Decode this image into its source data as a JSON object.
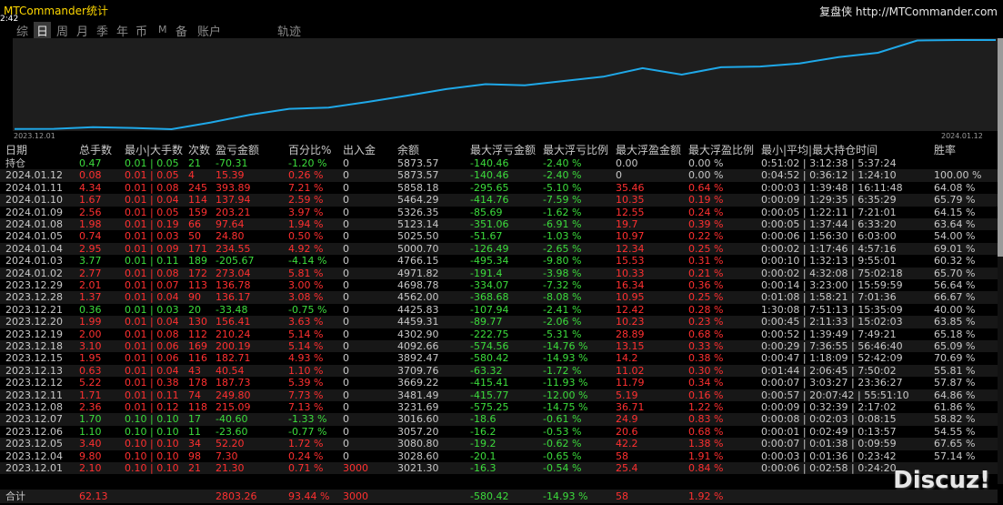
{
  "app": {
    "title": "MTCommander统计",
    "time_badge": "2:42",
    "brand": "复盘侠 http://MTCommander.com"
  },
  "tabs": [
    {
      "label": "综"
    },
    {
      "label": "日",
      "active": true
    },
    {
      "label": "周"
    },
    {
      "label": "月"
    },
    {
      "label": "季"
    },
    {
      "label": "年"
    },
    {
      "label": "币"
    },
    {
      "label": "M"
    },
    {
      "label": "备"
    },
    {
      "label": "账户"
    },
    {
      "label": "轨迹"
    }
  ],
  "equity_chart": {
    "x_start_label": "2023.12.01",
    "x_end_label": "2024.01.12",
    "line_color": "#1fa8e8",
    "values": [
      3021.3,
      3028.6,
      3080.8,
      3057.2,
      3016.6,
      3231.69,
      3481.49,
      3669.22,
      3709.76,
      3892.47,
      4092.66,
      4302.9,
      4459.31,
      4425.83,
      4562.0,
      4698.78,
      4971.82,
      4766.15,
      5000.7,
      5025.5,
      5123.14,
      5326.35,
      5464.29,
      5858.18,
      5873.57,
      5873.57
    ]
  },
  "colors": {
    "profit": "#ff3030",
    "loss": "#3cdc3c",
    "neutral": "#c8c8c8"
  },
  "table": {
    "headers": [
      "日期",
      "总手数",
      "最小|大手数",
      "次数",
      "盈亏金额",
      "百分比%",
      "出入金",
      "余额",
      "最大浮亏金额",
      "最大浮亏比例",
      "最大浮盈金额",
      "最大浮盈比例",
      "最小|平均|最大持仓时间",
      "胜率"
    ],
    "rows": [
      {
        "date": "持仓",
        "lots": "0.47",
        "minmax": "0.01 | 0.05",
        "count": "21",
        "pnl": "-70.31",
        "pct": "-1.20 %",
        "io": "0",
        "balance": "5873.57",
        "maxdd": "-140.46",
        "maxddpct": "-2.40 %",
        "maxfp": "0.00",
        "maxfppct": "0.00 %",
        "hold": "0:51:02 | 3:12:38 | 5:37:24",
        "win": "",
        "tone": "green"
      },
      {
        "date": "2024.01.12",
        "lots": "0.08",
        "minmax": "0.01 | 0.05",
        "count": "4",
        "pnl": "15.39",
        "pct": "0.26 %",
        "io": "0",
        "balance": "5873.57",
        "maxdd": "-140.46",
        "maxddpct": "-2.40 %",
        "maxfp": "0",
        "maxfppct": "0.00 %",
        "hold": "0:04:52 | 0:36:12 | 1:24:10",
        "win": "100.00 %",
        "tone": "red"
      },
      {
        "date": "2024.01.11",
        "lots": "4.34",
        "minmax": "0.01 | 0.08",
        "count": "245",
        "pnl": "393.89",
        "pct": "7.21 %",
        "io": "0",
        "balance": "5858.18",
        "maxdd": "-295.65",
        "maxddpct": "-5.10 %",
        "maxfp": "35.46",
        "maxfppct": "0.64 %",
        "hold": "0:00:03 | 1:39:48 | 16:11:48",
        "win": "64.08 %",
        "tone": "red"
      },
      {
        "date": "2024.01.10",
        "lots": "1.67",
        "minmax": "0.01 | 0.04",
        "count": "114",
        "pnl": "137.94",
        "pct": "2.59 %",
        "io": "0",
        "balance": "5464.29",
        "maxdd": "-414.76",
        "maxddpct": "-7.59 %",
        "maxfp": "10.35",
        "maxfppct": "0.19 %",
        "hold": "0:00:09 | 1:29:35 | 6:35:29",
        "win": "65.79 %",
        "tone": "red"
      },
      {
        "date": "2024.01.09",
        "lots": "2.56",
        "minmax": "0.01 | 0.05",
        "count": "159",
        "pnl": "203.21",
        "pct": "3.97 %",
        "io": "0",
        "balance": "5326.35",
        "maxdd": "-85.69",
        "maxddpct": "-1.62 %",
        "maxfp": "12.55",
        "maxfppct": "0.24 %",
        "hold": "0:00:05 | 1:22:11 | 7:21:01",
        "win": "64.15 %",
        "tone": "red"
      },
      {
        "date": "2024.01.08",
        "lots": "1.98",
        "minmax": "0.01 | 0.19",
        "count": "66",
        "pnl": "97.64",
        "pct": "1.94 %",
        "io": "0",
        "balance": "5123.14",
        "maxdd": "-351.06",
        "maxddpct": "-6.91 %",
        "maxfp": "19.7",
        "maxfppct": "0.39 %",
        "hold": "0:00:05 | 1:37:44 | 6:33:20",
        "win": "63.64 %",
        "tone": "red"
      },
      {
        "date": "2024.01.05",
        "lots": "0.74",
        "minmax": "0.01 | 0.03",
        "count": "50",
        "pnl": "24.80",
        "pct": "0.50 %",
        "io": "0",
        "balance": "5025.50",
        "maxdd": "-51.67",
        "maxddpct": "-1.03 %",
        "maxfp": "10.97",
        "maxfppct": "0.22 %",
        "hold": "0:00:06 | 1:56:30 | 6:03:00",
        "win": "54.00 %",
        "tone": "red"
      },
      {
        "date": "2024.01.04",
        "lots": "2.95",
        "minmax": "0.01 | 0.09",
        "count": "171",
        "pnl": "234.55",
        "pct": "4.92 %",
        "io": "0",
        "balance": "5000.70",
        "maxdd": "-126.49",
        "maxddpct": "-2.65 %",
        "maxfp": "12.34",
        "maxfppct": "0.25 %",
        "hold": "0:00:02 | 1:17:46 | 4:57:16",
        "win": "69.01 %",
        "tone": "red"
      },
      {
        "date": "2024.01.03",
        "lots": "3.77",
        "minmax": "0.01 | 0.11",
        "count": "189",
        "pnl": "-205.67",
        "pct": "-4.14 %",
        "io": "0",
        "balance": "4766.15",
        "maxdd": "-495.34",
        "maxddpct": "-9.80 %",
        "maxfp": "15.53",
        "maxfppct": "0.31 %",
        "hold": "0:00:10 | 1:32:13 | 9:55:01",
        "win": "60.32 %",
        "tone": "green"
      },
      {
        "date": "2024.01.02",
        "lots": "2.77",
        "minmax": "0.01 | 0.08",
        "count": "172",
        "pnl": "273.04",
        "pct": "5.81 %",
        "io": "0",
        "balance": "4971.82",
        "maxdd": "-191.4",
        "maxddpct": "-3.98 %",
        "maxfp": "10.33",
        "maxfppct": "0.21 %",
        "hold": "0:00:02 | 4:32:08 | 75:02:18",
        "win": "65.70 %",
        "tone": "red"
      },
      {
        "date": "2023.12.29",
        "lots": "2.01",
        "minmax": "0.01 | 0.07",
        "count": "113",
        "pnl": "136.78",
        "pct": "3.00 %",
        "io": "0",
        "balance": "4698.78",
        "maxdd": "-334.07",
        "maxddpct": "-7.32 %",
        "maxfp": "16.34",
        "maxfppct": "0.36 %",
        "hold": "0:00:14 | 3:23:00 | 15:59:59",
        "win": "56.64 %",
        "tone": "red"
      },
      {
        "date": "2023.12.28",
        "lots": "1.37",
        "minmax": "0.01 | 0.04",
        "count": "90",
        "pnl": "136.17",
        "pct": "3.08 %",
        "io": "0",
        "balance": "4562.00",
        "maxdd": "-368.68",
        "maxddpct": "-8.08 %",
        "maxfp": "10.95",
        "maxfppct": "0.25 %",
        "hold": "0:01:08 | 1:58:21 | 7:01:36",
        "win": "66.67 %",
        "tone": "red"
      },
      {
        "date": "2023.12.21",
        "lots": "0.36",
        "minmax": "0.01 | 0.03",
        "count": "20",
        "pnl": "-33.48",
        "pct": "-0.75 %",
        "io": "0",
        "balance": "4425.83",
        "maxdd": "-107.94",
        "maxddpct": "-2.41 %",
        "maxfp": "12.42",
        "maxfppct": "0.28 %",
        "hold": "1:30:08 | 7:51:13 | 15:35:09",
        "win": "40.00 %",
        "tone": "green"
      },
      {
        "date": "2023.12.20",
        "lots": "1.99",
        "minmax": "0.01 | 0.04",
        "count": "130",
        "pnl": "156.41",
        "pct": "3.63 %",
        "io": "0",
        "balance": "4459.31",
        "maxdd": "-89.77",
        "maxddpct": "-2.06 %",
        "maxfp": "10.23",
        "maxfppct": "0.23 %",
        "hold": "0:00:45 | 2:11:33 | 15:02:03",
        "win": "63.85 %",
        "tone": "red"
      },
      {
        "date": "2023.12.19",
        "lots": "2.00",
        "minmax": "0.01 | 0.08",
        "count": "112",
        "pnl": "210.24",
        "pct": "5.14 %",
        "io": "0",
        "balance": "4302.90",
        "maxdd": "-222.75",
        "maxddpct": "-5.31 %",
        "maxfp": "28.89",
        "maxfppct": "0.68 %",
        "hold": "0:00:52 | 1:39:49 | 7:49:21",
        "win": "65.18 %",
        "tone": "red"
      },
      {
        "date": "2023.12.18",
        "lots": "3.10",
        "minmax": "0.01 | 0.06",
        "count": "169",
        "pnl": "200.19",
        "pct": "5.14 %",
        "io": "0",
        "balance": "4092.66",
        "maxdd": "-574.56",
        "maxddpct": "-14.76 %",
        "maxfp": "13.15",
        "maxfppct": "0.33 %",
        "hold": "0:00:29 | 7:36:55 | 56:46:40",
        "win": "65.09 %",
        "tone": "red"
      },
      {
        "date": "2023.12.15",
        "lots": "1.95",
        "minmax": "0.01 | 0.06",
        "count": "116",
        "pnl": "182.71",
        "pct": "4.93 %",
        "io": "0",
        "balance": "3892.47",
        "maxdd": "-580.42",
        "maxddpct": "-14.93 %",
        "maxfp": "14.2",
        "maxfppct": "0.38 %",
        "hold": "0:00:47 | 1:18:09 | 52:42:09",
        "win": "70.69 %",
        "tone": "red"
      },
      {
        "date": "2023.12.13",
        "lots": "0.63",
        "minmax": "0.01 | 0.04",
        "count": "43",
        "pnl": "40.54",
        "pct": "1.10 %",
        "io": "0",
        "balance": "3709.76",
        "maxdd": "-63.32",
        "maxddpct": "-1.72 %",
        "maxfp": "11.02",
        "maxfppct": "0.30 %",
        "hold": "0:01:44 | 2:06:45 | 7:50:02",
        "win": "55.81 %",
        "tone": "red"
      },
      {
        "date": "2023.12.12",
        "lots": "5.22",
        "minmax": "0.01 | 0.38",
        "count": "178",
        "pnl": "187.73",
        "pct": "5.39 %",
        "io": "0",
        "balance": "3669.22",
        "maxdd": "-415.41",
        "maxddpct": "-11.93 %",
        "maxfp": "11.79",
        "maxfppct": "0.34 %",
        "hold": "0:00:07 | 3:03:27 | 23:36:27",
        "win": "57.87 %",
        "tone": "red"
      },
      {
        "date": "2023.12.11",
        "lots": "1.71",
        "minmax": "0.01 | 0.11",
        "count": "74",
        "pnl": "249.80",
        "pct": "7.73 %",
        "io": "0",
        "balance": "3481.49",
        "maxdd": "-415.77",
        "maxddpct": "-12.00 %",
        "maxfp": "5.19",
        "maxfppct": "0.16 %",
        "hold": "0:00:57 | 20:07:42 | 55:51:10",
        "win": "64.86 %",
        "tone": "red"
      },
      {
        "date": "2023.12.08",
        "lots": "2.36",
        "minmax": "0.01 | 0.12",
        "count": "118",
        "pnl": "215.09",
        "pct": "7.13 %",
        "io": "0",
        "balance": "3231.69",
        "maxdd": "-575.25",
        "maxddpct": "-14.75 %",
        "maxfp": "36.71",
        "maxfppct": "1.22 %",
        "hold": "0:00:09 | 0:32:39 | 2:17:02",
        "win": "61.86 %",
        "tone": "red"
      },
      {
        "date": "2023.12.07",
        "lots": "1.70",
        "minmax": "0.10 | 0.10",
        "count": "17",
        "pnl": "-40.60",
        "pct": "-1.33 %",
        "io": "0",
        "balance": "3016.60",
        "maxdd": "-18.6",
        "maxddpct": "-0.61 %",
        "maxfp": "24.9",
        "maxfppct": "0.83 %",
        "hold": "0:00:08 | 0:02:03 | 0:08:15",
        "win": "58.82 %",
        "tone": "green"
      },
      {
        "date": "2023.12.06",
        "lots": "1.10",
        "minmax": "0.10 | 0.10",
        "count": "11",
        "pnl": "-23.60",
        "pct": "-0.77 %",
        "io": "0",
        "balance": "3057.20",
        "maxdd": "-16.2",
        "maxddpct": "-0.53 %",
        "maxfp": "20.6",
        "maxfppct": "0.68 %",
        "hold": "0:00:01 | 0:02:49 | 0:13:57",
        "win": "54.55 %",
        "tone": "green"
      },
      {
        "date": "2023.12.05",
        "lots": "3.40",
        "minmax": "0.10 | 0.10",
        "count": "34",
        "pnl": "52.20",
        "pct": "1.72 %",
        "io": "0",
        "balance": "3080.80",
        "maxdd": "-19.2",
        "maxddpct": "-0.62 %",
        "maxfp": "42.2",
        "maxfppct": "1.38 %",
        "hold": "0:00:07 | 0:01:38 | 0:09:59",
        "win": "67.65 %",
        "tone": "red"
      },
      {
        "date": "2023.12.04",
        "lots": "9.80",
        "minmax": "0.10 | 0.10",
        "count": "98",
        "pnl": "7.30",
        "pct": "0.24 %",
        "io": "0",
        "balance": "3028.60",
        "maxdd": "-20.1",
        "maxddpct": "-0.65 %",
        "maxfp": "58",
        "maxfppct": "1.91 %",
        "hold": "0:00:03 | 0:01:36 | 0:23:42",
        "win": "57.14 %",
        "tone": "red"
      },
      {
        "date": "2023.12.01",
        "lots": "2.10",
        "minmax": "0.10 | 0.10",
        "count": "21",
        "pnl": "21.30",
        "pct": "0.71 %",
        "io": "3000",
        "balance": "3021.30",
        "maxdd": "-16.3",
        "maxddpct": "-0.54 %",
        "maxfp": "25.4",
        "maxfppct": "0.84 %",
        "hold": "0:00:06 | 0:02:58 | 0:24:20",
        "win": "",
        "tone": "red"
      }
    ],
    "total": {
      "date": "合计",
      "lots": "62.13",
      "pnl": "2803.26",
      "pct": "93.44 %",
      "io": "3000",
      "maxdd": "-580.42",
      "maxddpct": "-14.93 %",
      "maxfp": "58",
      "maxfppct": "1.92 %"
    }
  },
  "watermark": "Discuz!"
}
